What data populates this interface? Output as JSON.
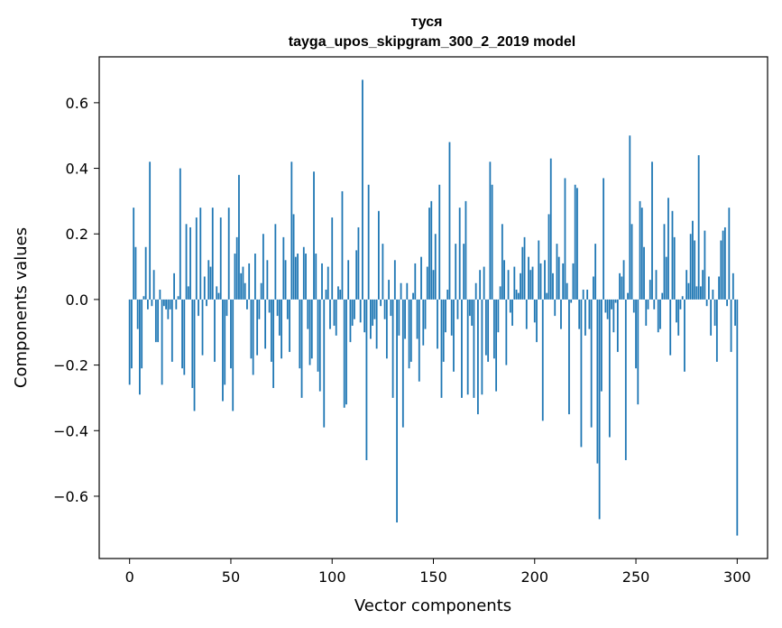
{
  "chart_data": {
    "type": "bar",
    "title": "туся",
    "subtitle": "tayga_upos_skipgram_300_2_2019 model",
    "xlabel": "Vector components",
    "ylabel": "Components values",
    "xlim": [
      -15,
      315
    ],
    "ylim": [
      -0.79,
      0.74
    ],
    "xticks": [
      0,
      50,
      100,
      150,
      200,
      250,
      300
    ],
    "xtick_labels": [
      "0",
      "50",
      "100",
      "150",
      "200",
      "250",
      "300"
    ],
    "yticks": [
      -0.6,
      -0.4,
      -0.2,
      0.0,
      0.2,
      0.4,
      0.6
    ],
    "ytick_labels": [
      "−0.6",
      "−0.4",
      "−0.2",
      "0.0",
      "0.2",
      "0.4",
      "0.6"
    ],
    "grid": false,
    "bar_color": "#1f77b4",
    "values": [
      -0.26,
      -0.21,
      0.28,
      0.16,
      -0.09,
      -0.29,
      -0.21,
      0.01,
      0.16,
      -0.03,
      0.42,
      -0.02,
      0.09,
      -0.13,
      -0.13,
      0.03,
      -0.26,
      -0.02,
      -0.03,
      -0.06,
      -0.03,
      -0.19,
      0.08,
      -0.03,
      0.01,
      0.4,
      -0.21,
      -0.23,
      0.23,
      0.04,
      0.22,
      -0.27,
      -0.34,
      0.25,
      -0.05,
      0.28,
      -0.17,
      0.07,
      -0.02,
      0.12,
      0.1,
      0.28,
      -0.19,
      0.04,
      0.02,
      0.25,
      -0.31,
      -0.26,
      -0.05,
      0.28,
      -0.21,
      -0.34,
      0.14,
      0.19,
      0.38,
      0.08,
      0.1,
      0.05,
      -0.03,
      0.11,
      -0.18,
      -0.23,
      0.14,
      -0.17,
      -0.06,
      0.05,
      0.2,
      -0.15,
      0.12,
      -0.04,
      -0.19,
      -0.27,
      0.23,
      -0.05,
      -0.11,
      -0.18,
      0.19,
      0.12,
      -0.06,
      -0.16,
      0.42,
      0.26,
      0.13,
      0.14,
      -0.21,
      -0.3,
      0.16,
      0.14,
      -0.09,
      -0.2,
      -0.18,
      0.39,
      0.14,
      -0.22,
      -0.28,
      0.11,
      -0.39,
      0.03,
      0.1,
      -0.09,
      0.25,
      -0.08,
      -0.11,
      0.04,
      0.03,
      0.33,
      -0.33,
      -0.32,
      0.12,
      -0.13,
      -0.08,
      -0.06,
      0.15,
      0.22,
      -0.07,
      0.67,
      -0.1,
      -0.49,
      0.35,
      -0.12,
      -0.08,
      -0.06,
      -0.15,
      0.27,
      -0.02,
      0.17,
      -0.06,
      -0.18,
      0.06,
      -0.05,
      -0.3,
      0.12,
      -0.68,
      -0.11,
      0.05,
      -0.39,
      -0.12,
      0.05,
      -0.21,
      -0.19,
      0.02,
      0.11,
      -0.12,
      -0.25,
      0.13,
      -0.14,
      -0.09,
      0.1,
      0.28,
      0.3,
      0.09,
      0.2,
      -0.15,
      0.35,
      -0.3,
      -0.19,
      -0.1,
      0.03,
      0.48,
      -0.11,
      -0.22,
      0.17,
      -0.06,
      0.28,
      -0.3,
      0.17,
      0.3,
      -0.29,
      -0.05,
      -0.08,
      -0.3,
      0.05,
      -0.35,
      0.09,
      -0.29,
      0.1,
      -0.17,
      -0.19,
      0.42,
      0.35,
      -0.18,
      -0.28,
      -0.1,
      0.04,
      0.23,
      0.12,
      -0.2,
      0.09,
      -0.04,
      -0.08,
      0.1,
      0.03,
      0.02,
      0.08,
      0.16,
      0.19,
      -0.09,
      0.13,
      0.09,
      0.1,
      -0.07,
      -0.13,
      0.18,
      0.11,
      -0.37,
      0.12,
      0.02,
      0.26,
      0.43,
      0.08,
      -0.05,
      0.17,
      0.13,
      -0.09,
      0.11,
      0.37,
      0.05,
      -0.35,
      -0.01,
      0.11,
      0.35,
      0.34,
      -0.09,
      -0.45,
      0.03,
      -0.11,
      0.03,
      -0.09,
      -0.39,
      0.07,
      0.17,
      -0.5,
      -0.67,
      -0.28,
      0.37,
      -0.04,
      -0.06,
      -0.42,
      -0.03,
      -0.1,
      -0.01,
      -0.16,
      0.08,
      0.07,
      0.12,
      -0.49,
      0.02,
      0.5,
      0.23,
      -0.04,
      -0.21,
      -0.32,
      0.3,
      0.28,
      0.16,
      -0.08,
      -0.03,
      0.06,
      0.42,
      -0.03,
      0.09,
      -0.1,
      -0.09,
      0.02,
      0.23,
      0.13,
      0.31,
      -0.17,
      0.27,
      0.19,
      -0.07,
      -0.11,
      -0.03,
      0.01,
      -0.22,
      0.09,
      0.05,
      0.2,
      0.24,
      0.18,
      0.04,
      0.44,
      0.04,
      0.09,
      0.21,
      -0.02,
      0.07,
      -0.11,
      0.03,
      -0.08,
      -0.19,
      0.07,
      0.18,
      0.21,
      0.22,
      -0.02,
      0.28,
      -0.16,
      0.08,
      -0.08,
      -0.72
    ]
  }
}
